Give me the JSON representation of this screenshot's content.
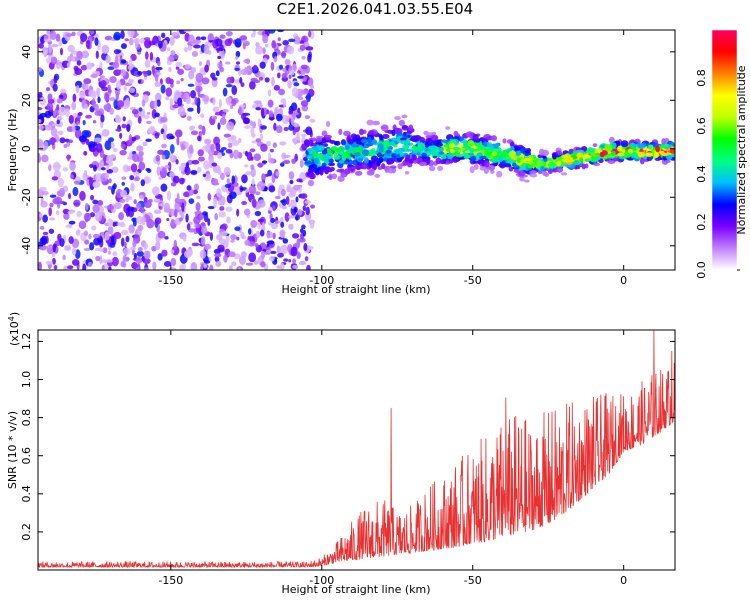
{
  "title": "C2E1.2026.041.03.55.E04",
  "chart_data": [
    {
      "type": "heatmap",
      "title": "C2E1.2026.041.03.55.E04",
      "xlabel": "Height of straight line (km)",
      "ylabel": "Frequency (Hz)",
      "xlim": [
        -194,
        17
      ],
      "ylim": [
        -50,
        49
      ],
      "xticks": [
        -150,
        -100,
        -50,
        0
      ],
      "yticks": [
        -40,
        -20,
        0,
        20,
        40
      ],
      "colorbar": {
        "label": "Normalized spectral amplitude",
        "range": [
          0,
          1
        ],
        "ticks": [
          0.0,
          0.2,
          0.4,
          0.6,
          0.8
        ],
        "colors": [
          "#ffffff",
          "#c080ff",
          "#7a00ff",
          "#0000ff",
          "#00c0ff",
          "#00ff80",
          "#00ff00",
          "#c0ff00",
          "#ffff00",
          "#ff8000",
          "#ff0000",
          "#ff0060"
        ]
      },
      "ridge": {
        "x": [
          -103,
          -95,
          -88,
          -80,
          -72,
          -65,
          -58,
          -50,
          -42,
          -35,
          -30,
          -25,
          -20,
          -12,
          -5,
          0,
          5,
          10,
          17
        ],
        "y": [
          -4,
          -2,
          -1,
          0,
          2,
          -1,
          0,
          0,
          -2,
          -4,
          -6,
          -6,
          -5,
          -3,
          -1,
          -1,
          -1,
          -1,
          -1
        ]
      },
      "grid": false
    },
    {
      "type": "line",
      "xlabel": "Height of straight line (km)",
      "ylabel": "SNR (10 * v/v)",
      "y_scale_label": "(x10",
      "y_scale_exp": "4",
      "y_scale_close": ")",
      "xlim": [
        -194,
        17
      ],
      "ylim": [
        0,
        12600
      ],
      "xticks": [
        -150,
        -100,
        -50,
        0
      ],
      "yticks": [
        2000,
        4000,
        6000,
        8000,
        10000,
        12000
      ],
      "ytick_labels": [
        "0.2",
        "0.4",
        "0.6",
        "0.8",
        "1.0",
        "1.2"
      ],
      "color": "#e83030",
      "envelope": {
        "x": [
          -194,
          -105,
          -100,
          -95,
          -90,
          -85,
          -80,
          -75,
          -70,
          -65,
          -60,
          -55,
          -50,
          -45,
          -40,
          -35,
          -30,
          -25,
          -20,
          -15,
          -10,
          -5,
          0,
          5,
          10,
          17
        ],
        "base": [
          150,
          150,
          200,
          400,
          500,
          600,
          700,
          800,
          900,
          1000,
          1100,
          1200,
          1400,
          1500,
          1700,
          1900,
          2100,
          2400,
          2900,
          3600,
          4300,
          5000,
          6200,
          6500,
          7000,
          7800
        ],
        "peak": [
          450,
          450,
          700,
          1500,
          2600,
          3500,
          3800,
          3200,
          3400,
          4500,
          5000,
          5800,
          6500,
          7200,
          8000,
          8400,
          7800,
          8500,
          8800,
          9000,
          9200,
          9300,
          9400,
          9800,
          10500,
          11000
        ]
      },
      "spikes": [
        {
          "x": -77,
          "y": 8500
        },
        {
          "x": -39,
          "y": 9050
        },
        {
          "x": 10,
          "y": 12600
        },
        {
          "x": 16,
          "y": 11500
        }
      ],
      "grid": false
    }
  ]
}
